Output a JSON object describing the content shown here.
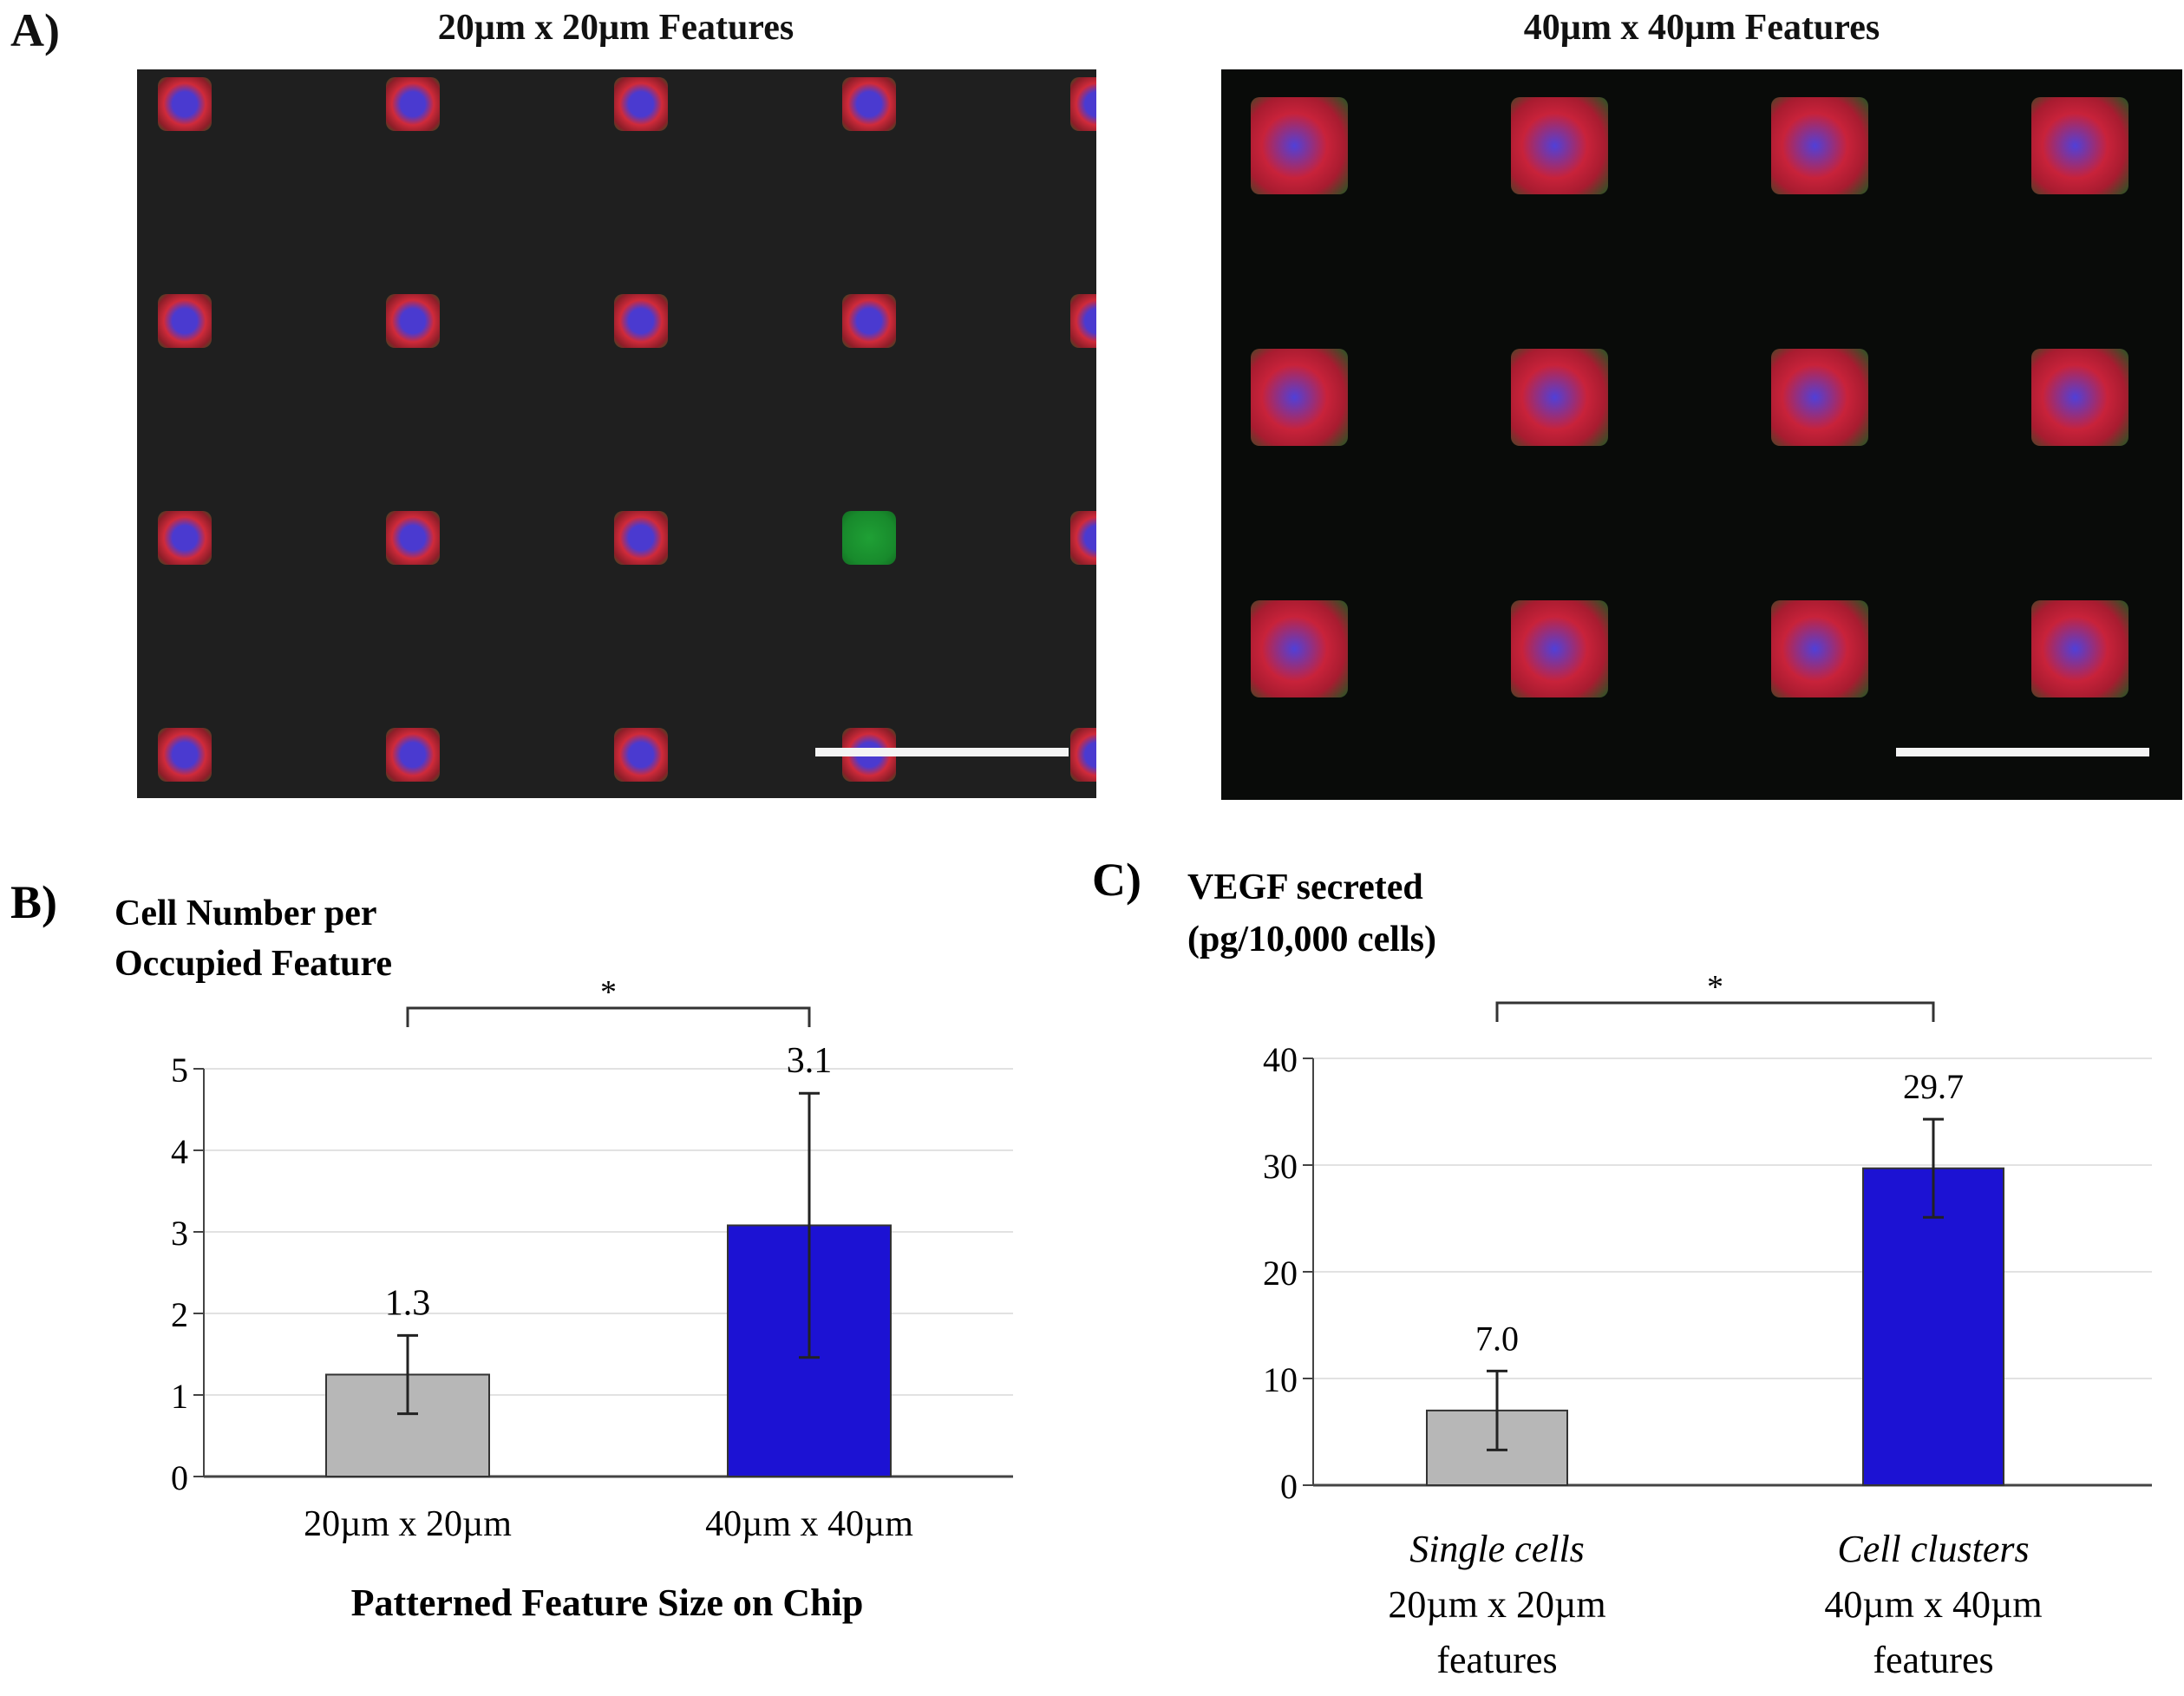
{
  "panelA": {
    "letter": "A)",
    "left_title": "20µm x 20µm Features",
    "right_title": "40µm x 40µm Features"
  },
  "chart_data": [
    {
      "panel": "B)",
      "type": "bar",
      "title_lines": [
        "Cell Number per",
        "Occupied Feature"
      ],
      "categories": [
        "20µm x 20µm",
        "40µm x 40µm"
      ],
      "values": [
        1.25,
        3.08
      ],
      "value_labels": [
        "1.3",
        "3.1"
      ],
      "error": [
        0.48,
        1.62
      ],
      "colors": [
        "#b7b7b7",
        "#1c12d3"
      ],
      "xlabel": "Patterned Feature Size on Chip",
      "ylim": [
        0,
        5
      ],
      "yticks": [
        0,
        1,
        2,
        3,
        4,
        5
      ],
      "grid": true,
      "significance": "*"
    },
    {
      "panel": "C)",
      "type": "bar",
      "title_lines": [
        "VEGF secreted",
        "(pg/10,000 cells)"
      ],
      "categories": [
        [
          "Single cells",
          "20µm x 20µm",
          "features"
        ],
        [
          "Cell clusters",
          "40µm x 40µm",
          "features"
        ]
      ],
      "values": [
        7.0,
        29.7
      ],
      "value_labels": [
        "7.0",
        "29.7"
      ],
      "error": [
        3.7,
        4.6
      ],
      "colors": [
        "#b7b7b7",
        "#1c12d3"
      ],
      "ylim": [
        0,
        40
      ],
      "yticks": [
        0,
        10,
        20,
        30,
        40
      ],
      "grid": true,
      "significance": "*"
    }
  ]
}
